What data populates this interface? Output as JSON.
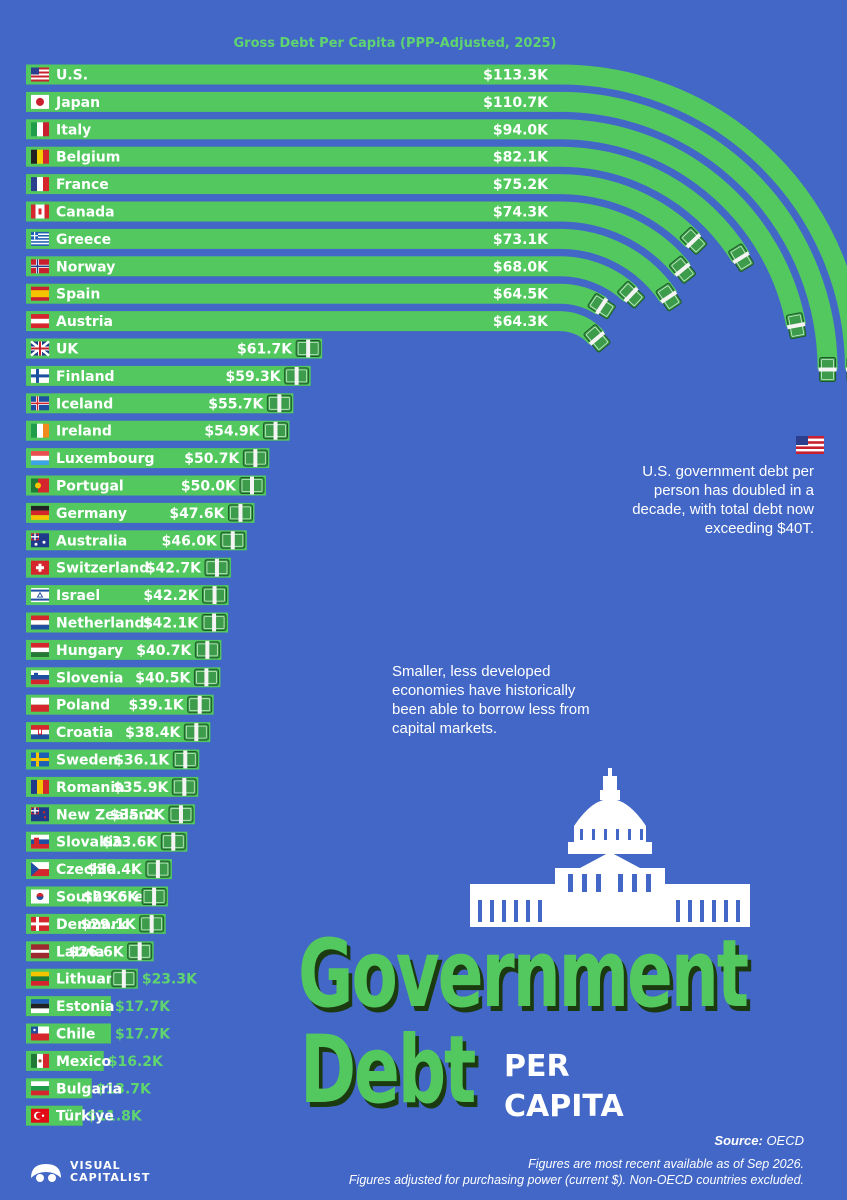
{
  "chart_data": {
    "type": "bar",
    "orientation": "horizontal",
    "title": "Gross Debt Per Capita (PPP-Adjusted, 2025)",
    "categories": [
      "U.S.",
      "Japan",
      "Italy",
      "Belgium",
      "France",
      "Canada",
      "Greece",
      "Norway",
      "Spain",
      "Austria",
      "UK",
      "Finland",
      "Iceland",
      "Ireland",
      "Luxembourg",
      "Portugal",
      "Germany",
      "Australia",
      "Switzerland",
      "Israel",
      "Netherlands",
      "Hungary",
      "Slovenia",
      "Poland",
      "Croatia",
      "Sweden",
      "Romania",
      "New Zealand",
      "Slovakia",
      "Czechia",
      "South Korea",
      "Denmark",
      "Latvia",
      "Lithuania",
      "Estonia",
      "Chile",
      "Mexico",
      "Bulgaria",
      "Türkiye"
    ],
    "values": [
      113.3,
      110.7,
      94.0,
      82.1,
      75.2,
      74.3,
      73.1,
      68.0,
      64.5,
      64.3,
      61.7,
      59.3,
      55.7,
      54.9,
      50.7,
      50.0,
      47.6,
      46.0,
      42.7,
      42.2,
      42.1,
      40.7,
      40.5,
      39.1,
      38.4,
      36.1,
      35.9,
      35.2,
      33.6,
      30.4,
      29.6,
      29.1,
      26.6,
      23.3,
      17.7,
      17.7,
      16.2,
      13.7,
      11.8
    ],
    "value_labels": [
      "$113.3K",
      "$110.7K",
      "$94.0K",
      "$82.1K",
      "$75.2K",
      "$74.3K",
      "$73.1K",
      "$68.0K",
      "$64.5K",
      "$64.3K",
      "$61.7K",
      "$59.3K",
      "$55.7K",
      "$54.9K",
      "$50.7K",
      "$50.0K",
      "$47.6K",
      "$46.0K",
      "$42.7K",
      "$42.2K",
      "$42.1K",
      "$40.7K",
      "$40.5K",
      "$39.1K",
      "$38.4K",
      "$36.1K",
      "$35.9K",
      "$35.2K",
      "$33.6K",
      "$30.4K",
      "$29.6K",
      "$29.1K",
      "$26.6K",
      "$23.3K",
      "$17.7K",
      "$17.7K",
      "$16.2K",
      "$13.7K",
      "$11.8K"
    ],
    "unit": "thousand US$ (PPP)",
    "curved_top_bars": 10,
    "colors": {
      "bar": "#52c85f",
      "bar_edge": "#2f8a3c",
      "background": "#4267c6",
      "money": "#3d9c4b"
    }
  },
  "annotations": {
    "us_note": "U.S. government debt per person has doubled in a decade, with total debt now exceeding $40T.",
    "small_note": "Smaller, less developed economies have historically been able to borrow less from capital markets."
  },
  "title": {
    "line1": "Government",
    "line2": "Debt",
    "line3": "PER",
    "line4": "CAPITA"
  },
  "source": {
    "label": "Source:",
    "value": "OECD"
  },
  "footnotes": [
    "Figures are most recent available as of Sep 2026.",
    "Figures adjusted for purchasing power (current $). Non-OECD countries excluded."
  ],
  "brand": {
    "line1": "VISUAL",
    "line2": "CAPITALIST"
  }
}
